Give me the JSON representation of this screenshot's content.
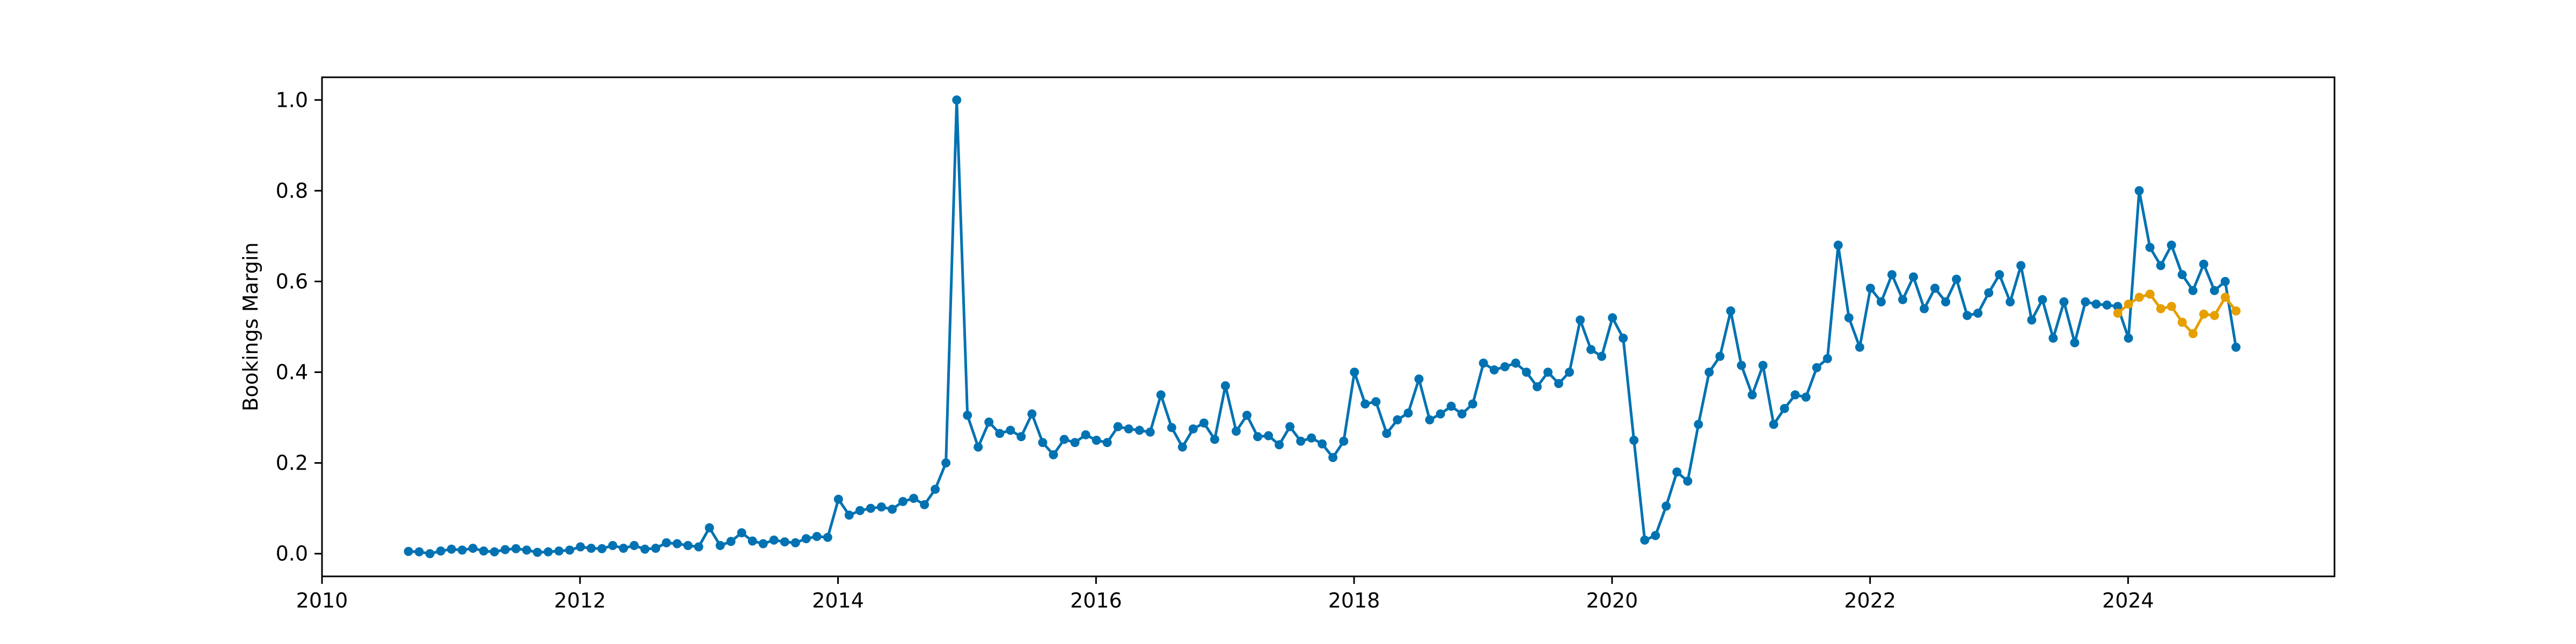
{
  "chart_data": {
    "type": "line",
    "title": "",
    "xlabel": "",
    "ylabel": "Bookings Margin",
    "xlim": [
      2010.0,
      2025.6
    ],
    "ylim": [
      -0.05,
      1.05
    ],
    "xticks": [
      2010,
      2012,
      2014,
      2016,
      2018,
      2020,
      2022,
      2024
    ],
    "yticks": [
      0.0,
      0.2,
      0.4,
      0.6,
      0.8,
      1.0
    ],
    "xtick_labels": [
      "2010",
      "2012",
      "2014",
      "2016",
      "2018",
      "2020",
      "2022",
      "2024"
    ],
    "ytick_labels": [
      "0.0",
      "0.2",
      "0.4",
      "0.6",
      "0.8",
      "1.0"
    ],
    "grid": false,
    "legend": "none",
    "series": [
      {
        "color": "#0072B2",
        "x_start": 2010.67,
        "x_step": 0.08333,
        "values": [
          0.005,
          0.004,
          0.0,
          0.006,
          0.01,
          0.008,
          0.012,
          0.006,
          0.004,
          0.009,
          0.011,
          0.008,
          0.003,
          0.004,
          0.006,
          0.008,
          0.015,
          0.012,
          0.011,
          0.018,
          0.012,
          0.018,
          0.01,
          0.012,
          0.024,
          0.022,
          0.018,
          0.015,
          0.057,
          0.018,
          0.027,
          0.046,
          0.028,
          0.022,
          0.03,
          0.026,
          0.024,
          0.033,
          0.038,
          0.036,
          0.12,
          0.085,
          0.095,
          0.1,
          0.103,
          0.098,
          0.115,
          0.122,
          0.108,
          0.142,
          0.2,
          1.0,
          0.305,
          0.235,
          0.29,
          0.265,
          0.272,
          0.258,
          0.308,
          0.245,
          0.218,
          0.252,
          0.245,
          0.262,
          0.25,
          0.245,
          0.28,
          0.275,
          0.272,
          0.268,
          0.35,
          0.278,
          0.235,
          0.275,
          0.288,
          0.252,
          0.37,
          0.27,
          0.305,
          0.258,
          0.26,
          0.24,
          0.28,
          0.248,
          0.255,
          0.242,
          0.212,
          0.248,
          0.4,
          0.33,
          0.335,
          0.265,
          0.295,
          0.31,
          0.385,
          0.295,
          0.308,
          0.325,
          0.308,
          0.33,
          0.42,
          0.405,
          0.412,
          0.42,
          0.4,
          0.368,
          0.4,
          0.375,
          0.4,
          0.515,
          0.45,
          0.435,
          0.52,
          0.475,
          0.25,
          0.03,
          0.04,
          0.105,
          0.18,
          0.16,
          0.285,
          0.4,
          0.435,
          0.535,
          0.415,
          0.35,
          0.415,
          0.285,
          0.32,
          0.35,
          0.345,
          0.41,
          0.43,
          0.68,
          0.52,
          0.455,
          0.585,
          0.555,
          0.615,
          0.56,
          0.61,
          0.54,
          0.585,
          0.555,
          0.605,
          0.525,
          0.53,
          0.575,
          0.615,
          0.555,
          0.635,
          0.515,
          0.56,
          0.475,
          0.555,
          0.465,
          0.555,
          0.55,
          0.548,
          0.545,
          0.475,
          0.8,
          0.675,
          0.635,
          0.68,
          0.615,
          0.58,
          0.638,
          0.58,
          0.6,
          0.455
        ]
      },
      {
        "color": "#E69F00",
        "x_start": 2023.92,
        "x_step": 0.08333,
        "values": [
          0.53,
          0.55,
          0.565,
          0.572,
          0.54,
          0.545,
          0.51,
          0.485,
          0.528,
          0.525,
          0.565,
          0.535
        ]
      }
    ]
  }
}
